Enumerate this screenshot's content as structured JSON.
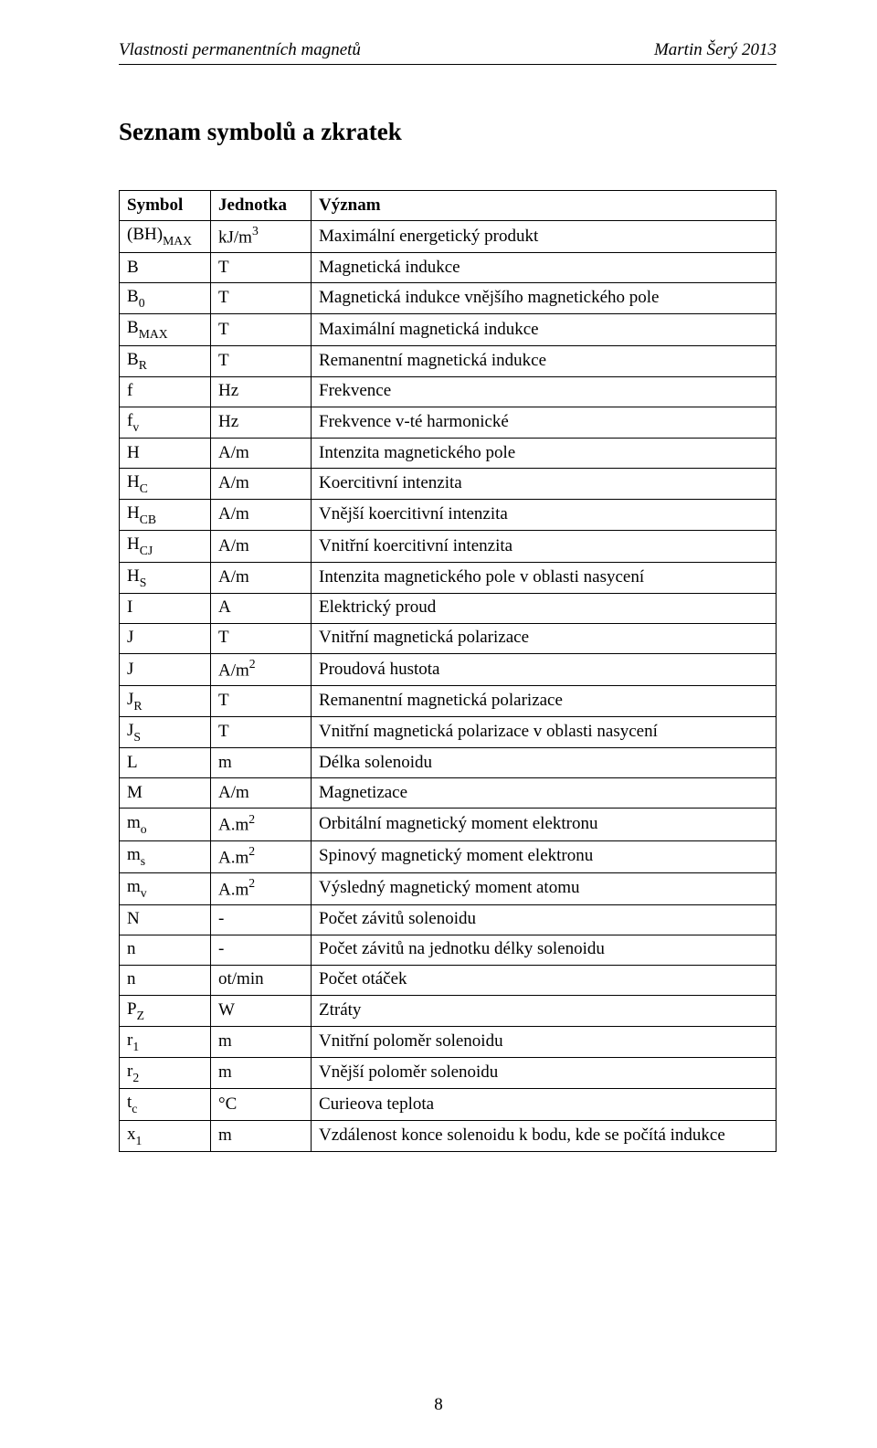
{
  "header": {
    "left": "Vlastnosti permanentních magnetů",
    "right": "Martin Šerý    2013"
  },
  "title": "Seznam symbolů a zkratek",
  "table": {
    "columns": [
      "Symbol",
      "Jednotka",
      "Význam"
    ],
    "rows": [
      {
        "sym_base": "(BH)",
        "sym_sub": "MAX",
        "unit_base": "kJ/m",
        "unit_sup": "3",
        "desc": "Maximální energetický produkt"
      },
      {
        "sym_base": "B",
        "sym_sub": "",
        "unit_base": "T",
        "unit_sup": "",
        "desc": "Magnetická indukce"
      },
      {
        "sym_base": "B",
        "sym_sub": "0",
        "unit_base": "T",
        "unit_sup": "",
        "desc": "Magnetická indukce vnějšího magnetického pole"
      },
      {
        "sym_base": "B",
        "sym_sub": "MAX",
        "unit_base": "T",
        "unit_sup": "",
        "desc": "Maximální magnetická indukce"
      },
      {
        "sym_base": "B",
        "sym_sub": "R",
        "unit_base": "T",
        "unit_sup": "",
        "desc": "Remanentní magnetická indukce"
      },
      {
        "sym_base": "f",
        "sym_sub": "",
        "unit_base": "Hz",
        "unit_sup": "",
        "desc": "Frekvence"
      },
      {
        "sym_base": "f",
        "sym_sub": "v",
        "unit_base": "Hz",
        "unit_sup": "",
        "desc": "Frekvence v-té harmonické"
      },
      {
        "sym_base": "H",
        "sym_sub": "",
        "unit_base": "A/m",
        "unit_sup": "",
        "desc": "Intenzita magnetického pole"
      },
      {
        "sym_base": "H",
        "sym_sub": "C",
        "unit_base": "A/m",
        "unit_sup": "",
        "desc": "Koercitivní intenzita"
      },
      {
        "sym_base": "H",
        "sym_sub": "CB",
        "unit_base": "A/m",
        "unit_sup": "",
        "desc": "Vnější koercitivní intenzita"
      },
      {
        "sym_base": "H",
        "sym_sub": "CJ",
        "unit_base": "A/m",
        "unit_sup": "",
        "desc": "Vnitřní koercitivní intenzita"
      },
      {
        "sym_base": "H",
        "sym_sub": "S",
        "unit_base": "A/m",
        "unit_sup": "",
        "desc": "Intenzita magnetického pole v oblasti nasycení"
      },
      {
        "sym_base": "I",
        "sym_sub": "",
        "unit_base": "A",
        "unit_sup": "",
        "desc": "Elektrický proud"
      },
      {
        "sym_base": "J",
        "sym_sub": "",
        "unit_base": "T",
        "unit_sup": "",
        "desc": "Vnitřní magnetická polarizace"
      },
      {
        "sym_base": "J",
        "sym_sub": "",
        "unit_base": "A/m",
        "unit_sup": "2",
        "desc": "Proudová hustota"
      },
      {
        "sym_base": "J",
        "sym_sub": "R",
        "unit_base": "T",
        "unit_sup": "",
        "desc": "Remanentní magnetická polarizace"
      },
      {
        "sym_base": "J",
        "sym_sub": "S",
        "unit_base": "T",
        "unit_sup": "",
        "desc": "Vnitřní magnetická polarizace v oblasti nasycení"
      },
      {
        "sym_base": "L",
        "sym_sub": "",
        "unit_base": "m",
        "unit_sup": "",
        "desc": "Délka solenoidu"
      },
      {
        "sym_base": "M",
        "sym_sub": "",
        "unit_base": "A/m",
        "unit_sup": "",
        "desc": "Magnetizace"
      },
      {
        "sym_base": "m",
        "sym_sub": "o",
        "unit_base": "A.m",
        "unit_sup": "2",
        "desc": "Orbitální magnetický moment elektronu"
      },
      {
        "sym_base": "m",
        "sym_sub": "s",
        "unit_base": "A.m",
        "unit_sup": "2",
        "desc": "Spinový magnetický moment elektronu"
      },
      {
        "sym_base": "m",
        "sym_sub": "v",
        "unit_base": "A.m",
        "unit_sup": "2",
        "desc": "Výsledný magnetický moment atomu"
      },
      {
        "sym_base": "N",
        "sym_sub": "",
        "unit_base": "-",
        "unit_sup": "",
        "desc": "Počet závitů solenoidu"
      },
      {
        "sym_base": "n",
        "sym_sub": "",
        "unit_base": "-",
        "unit_sup": "",
        "desc": "Počet závitů na jednotku délky solenoidu"
      },
      {
        "sym_base": "n",
        "sym_sub": "",
        "unit_base": "ot/min",
        "unit_sup": "",
        "desc": "Počet otáček"
      },
      {
        "sym_base": "P",
        "sym_sub": "Z",
        "unit_base": "W",
        "unit_sup": "",
        "desc": "Ztráty"
      },
      {
        "sym_base": "r",
        "sym_sub": "1",
        "unit_base": "m",
        "unit_sup": "",
        "desc": "Vnitřní poloměr solenoidu"
      },
      {
        "sym_base": "r",
        "sym_sub": "2",
        "unit_base": "m",
        "unit_sup": "",
        "desc": "Vnější poloměr solenoidu"
      },
      {
        "sym_base": "t",
        "sym_sub": "c",
        "unit_base": "°C",
        "unit_sup": "",
        "desc": "Curieova teplota"
      },
      {
        "sym_base": "x",
        "sym_sub": "1",
        "unit_base": "m",
        "unit_sup": "",
        "desc": "Vzdálenost konce solenoidu k bodu, kde se počítá indukce"
      }
    ]
  },
  "page_number": "8"
}
